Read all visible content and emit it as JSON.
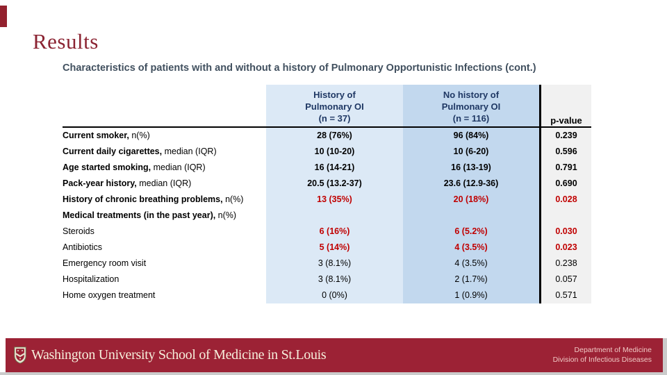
{
  "slide": {
    "title": "Results",
    "subtitle": "Characteristics of patients with and without a history of Pulmonary Opportunistic Infections (cont.)"
  },
  "colors": {
    "accent_maroon": "#8B2332",
    "footer_red": "#9C2235",
    "header_navy": "#1F3864",
    "col1_bg": "#DCE9F6",
    "col2_bg": "#C2D8EE",
    "pcol_bg": "#F1F1F1",
    "highlight_red": "#C00000",
    "subtitle_slate": "#41505F"
  },
  "table": {
    "header": {
      "col1_lines": [
        "History of",
        "Pulmonary OI",
        "(n = 37)"
      ],
      "col2_lines": [
        "No history of",
        "Pulmonary OI",
        "(n = 116)"
      ],
      "pvalue_label": "p-value"
    },
    "rows": [
      {
        "label": "Current smoker,",
        "label_suffix": " n(%)",
        "bold_label": true,
        "v1": "28 (76%)",
        "v2": "96 (84%)",
        "p": "0.239",
        "highlight": false,
        "bold_values": true
      },
      {
        "label": "Current daily cigarettes,",
        "label_suffix": " median (IQR)",
        "bold_label": true,
        "v1": "10 (10-20)",
        "v2": "10 (6-20)",
        "p": "0.596",
        "highlight": false,
        "bold_values": true
      },
      {
        "label": "Age started smoking,",
        "label_suffix": " median (IQR)",
        "bold_label": true,
        "v1": "16 (14-21)",
        "v2": "16 (13-19)",
        "p": "0.791",
        "highlight": false,
        "bold_values": true
      },
      {
        "label": "Pack-year history,",
        "label_suffix": " median (IQR)",
        "bold_label": true,
        "v1": "20.5 (13.2-37)",
        "v2": "23.6 (12.9-36)",
        "p": "0.690",
        "highlight": false,
        "bold_values": true
      },
      {
        "label": "History of chronic breathing problems,",
        "label_suffix": " n(%)",
        "bold_label": true,
        "v1": "13 (35%)",
        "v2": "20 (18%)",
        "p": "0.028",
        "highlight": true,
        "bold_values": true
      },
      {
        "label": "Medical treatments (in the past year),",
        "label_suffix": " n(%)",
        "bold_label": true,
        "v1": "",
        "v2": "",
        "p": "",
        "highlight": false,
        "bold_values": false
      },
      {
        "label": "Steroids",
        "label_suffix": "",
        "bold_label": false,
        "v1": "6 (16%)",
        "v2": "6 (5.2%)",
        "p": "0.030",
        "highlight": true,
        "bold_values": true
      },
      {
        "label": "Antibiotics",
        "label_suffix": "",
        "bold_label": false,
        "v1": "5 (14%)",
        "v2": "4 (3.5%)",
        "p": "0.023",
        "highlight": true,
        "bold_values": true
      },
      {
        "label": "Emergency room visit",
        "label_suffix": "",
        "bold_label": false,
        "v1": "3 (8.1%)",
        "v2": "4 (3.5%)",
        "p": "0.238",
        "highlight": false,
        "bold_values": false
      },
      {
        "label": "Hospitalization",
        "label_suffix": "",
        "bold_label": false,
        "v1": "3 (8.1%)",
        "v2": "2 (1.7%)",
        "p": "0.057",
        "highlight": false,
        "bold_values": false
      },
      {
        "label": "Home oxygen treatment",
        "label_suffix": "",
        "bold_label": false,
        "v1": "0 (0%)",
        "v2": "1 (0.9%)",
        "p": "0.571",
        "highlight": false,
        "bold_values": false
      }
    ]
  },
  "footer": {
    "wordmark": "Washington University School of Medicine in St.Louis",
    "department": "Department of Medicine",
    "division": "Division of Infectious Diseases"
  }
}
